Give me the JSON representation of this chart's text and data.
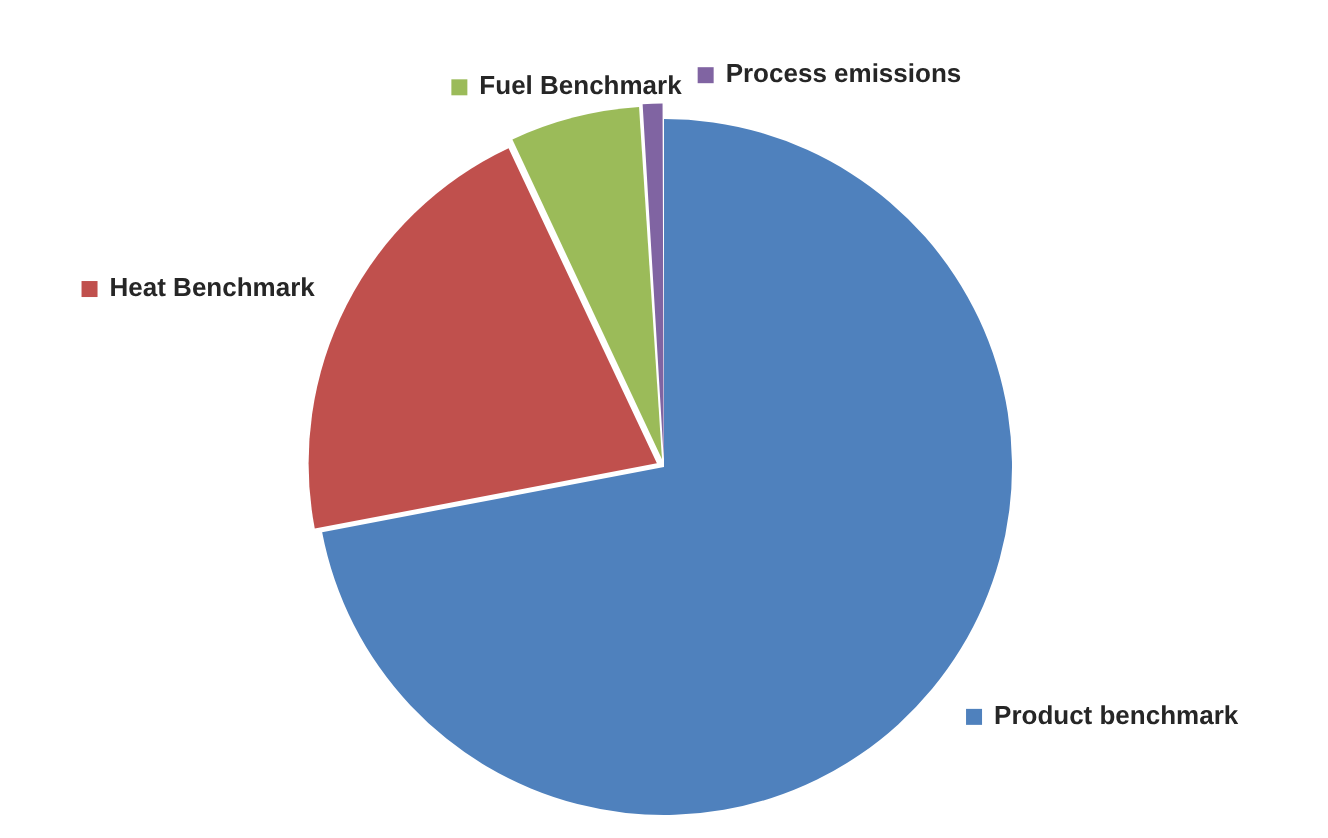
{
  "chart_data": {
    "type": "pie",
    "categories": [
      "Product benchmark",
      "Heat Benchmark",
      "Fuel Benchmark",
      "Process emissions"
    ],
    "values": [
      72,
      21,
      6,
      1
    ],
    "colors": [
      "#4f81bd",
      "#c0504d",
      "#9bbb59",
      "#8064a2"
    ],
    "legend": "right"
  }
}
